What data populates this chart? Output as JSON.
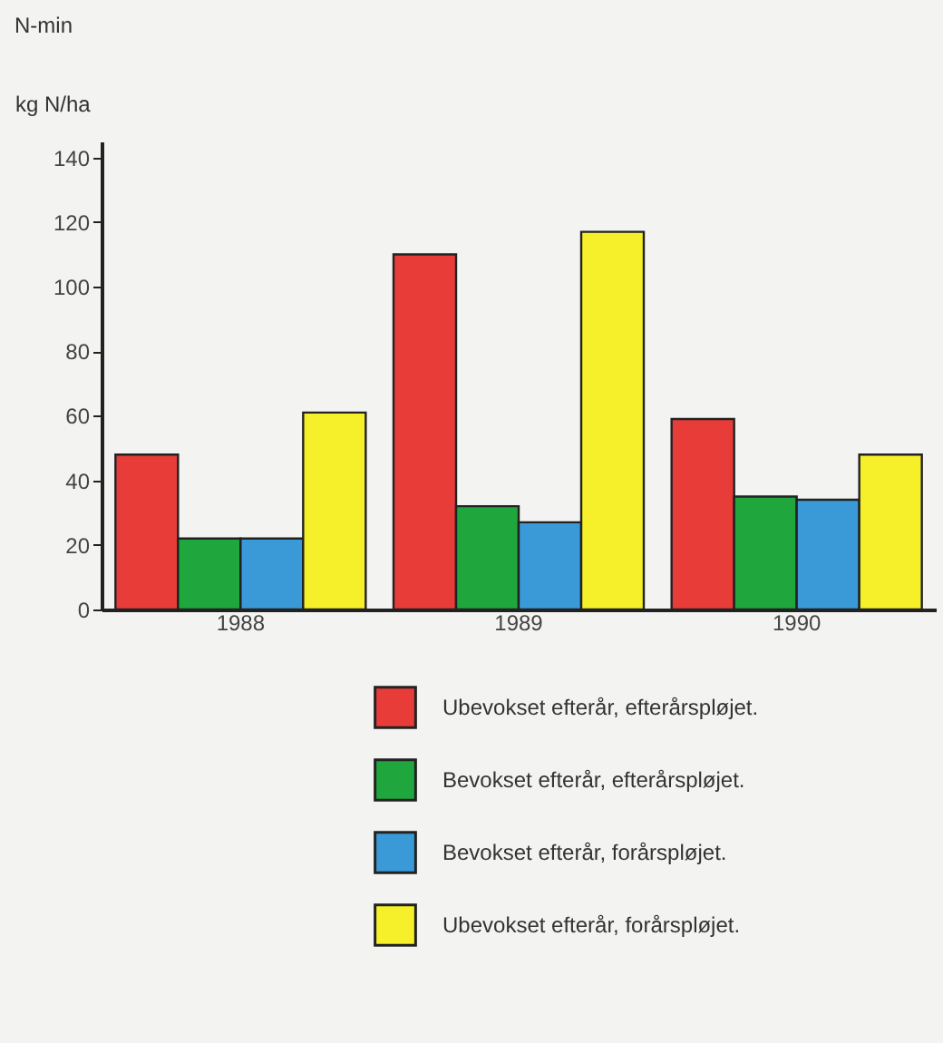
{
  "chart_data": {
    "type": "bar",
    "title": "N-min",
    "ylabel": "kg N/ha",
    "categories": [
      "1988",
      "1989",
      "1990"
    ],
    "series": [
      {
        "name": "Ubevokset efterår, efterårspløjet.",
        "color": "#e83c38",
        "values": [
          48,
          110,
          59
        ]
      },
      {
        "name": "Bevokset efterår, efterårspløjet.",
        "color": "#1fa63c",
        "values": [
          22,
          32,
          35
        ]
      },
      {
        "name": "Bevokset efterår, forårspløjet.",
        "color": "#3a9ad8",
        "values": [
          22,
          27,
          34
        ]
      },
      {
        "name": "Ubevokset efterår, forårspløjet.",
        "color": "#f6f02a",
        "values": [
          61,
          117,
          48
        ]
      }
    ],
    "ylim": [
      0,
      145
    ],
    "yticks": [
      0,
      20,
      40,
      60,
      80,
      100,
      120,
      140
    ],
    "grid": false,
    "legend": "bottom"
  }
}
